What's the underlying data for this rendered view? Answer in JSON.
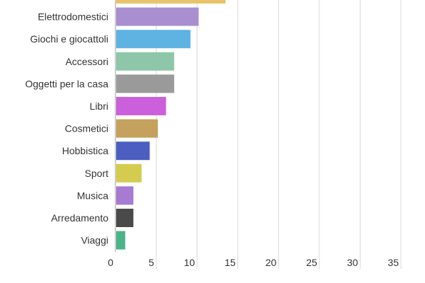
{
  "chart_data": {
    "type": "bar",
    "orientation": "horizontal",
    "title": "",
    "xlabel": "",
    "ylabel": "",
    "xlim": [
      0,
      35
    ],
    "xticks": [
      0,
      5,
      10,
      15,
      20,
      25,
      30,
      35
    ],
    "grid": true,
    "categories": [
      "",
      "Elettrodomestici",
      "Giochi e giocattoli",
      "Accessori",
      "Oggetti per la casa",
      "Libri",
      "Cosmetici",
      "Hobbistica",
      "Sport",
      "Musica",
      "Arredamento",
      "Viaggi"
    ],
    "values": [
      13.5,
      10.2,
      9.2,
      7.2,
      7.2,
      6.2,
      5.2,
      4.2,
      3.2,
      2.2,
      2.2,
      1.2
    ],
    "colors": [
      "#e8c36a",
      "#a98fcf",
      "#5fb3e3",
      "#8ec6a9",
      "#9a9a9a",
      "#cc5fdb",
      "#c4a25e",
      "#4d5ec1",
      "#d4cc4f",
      "#a77bd1",
      "#4a4a4a",
      "#4db38a"
    ]
  }
}
